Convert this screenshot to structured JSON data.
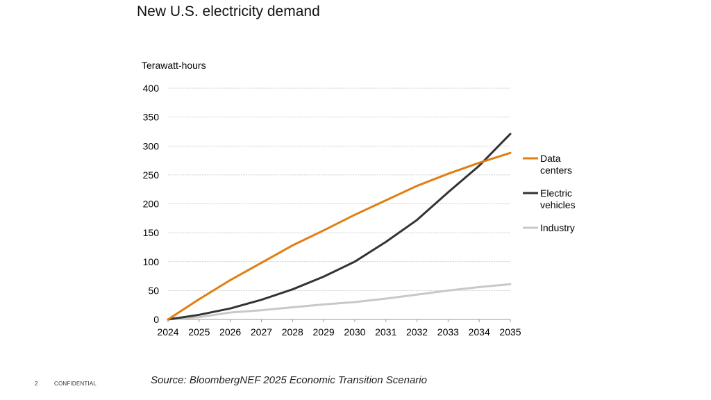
{
  "title": "New U.S. electricity demand",
  "source": "Source: BloombergNEF 2025 Economic Transition Scenario",
  "footer": {
    "page_number": "2",
    "label": "CONFIDENTIAL"
  },
  "colors": {
    "data_centers": "#E07E10",
    "electric_vehicles": "#333333",
    "industry": "#C8C8C8",
    "grid": "#BDBDBD"
  },
  "chart_data": {
    "type": "line",
    "title": "New U.S. electricity demand",
    "ylabel": "Terawatt-hours",
    "xlabel": "",
    "x": [
      2024,
      2025,
      2026,
      2027,
      2028,
      2029,
      2030,
      2031,
      2032,
      2033,
      2034,
      2035
    ],
    "ylim": [
      0,
      400
    ],
    "yticks": [
      0,
      50,
      100,
      150,
      200,
      250,
      300,
      350,
      400
    ],
    "grid": true,
    "legend_position": "right",
    "series": [
      {
        "name": "Data centers",
        "legend_lines": [
          "Data",
          "centers"
        ],
        "color": "#E07E10",
        "values": [
          0,
          35,
          68,
          98,
          128,
          154,
          181,
          206,
          231,
          252,
          271,
          288
        ]
      },
      {
        "name": "Electric vehicles",
        "legend_lines": [
          "Electric",
          "vehicles"
        ],
        "color": "#333333",
        "values": [
          0,
          8,
          19,
          34,
          52,
          74,
          100,
          134,
          172,
          220,
          266,
          321
        ]
      },
      {
        "name": "Industry",
        "legend_lines": [
          "Industry"
        ],
        "color": "#C8C8C8",
        "values": [
          0,
          4,
          12,
          16,
          21,
          26,
          30,
          36,
          43,
          50,
          56,
          61
        ]
      }
    ]
  }
}
